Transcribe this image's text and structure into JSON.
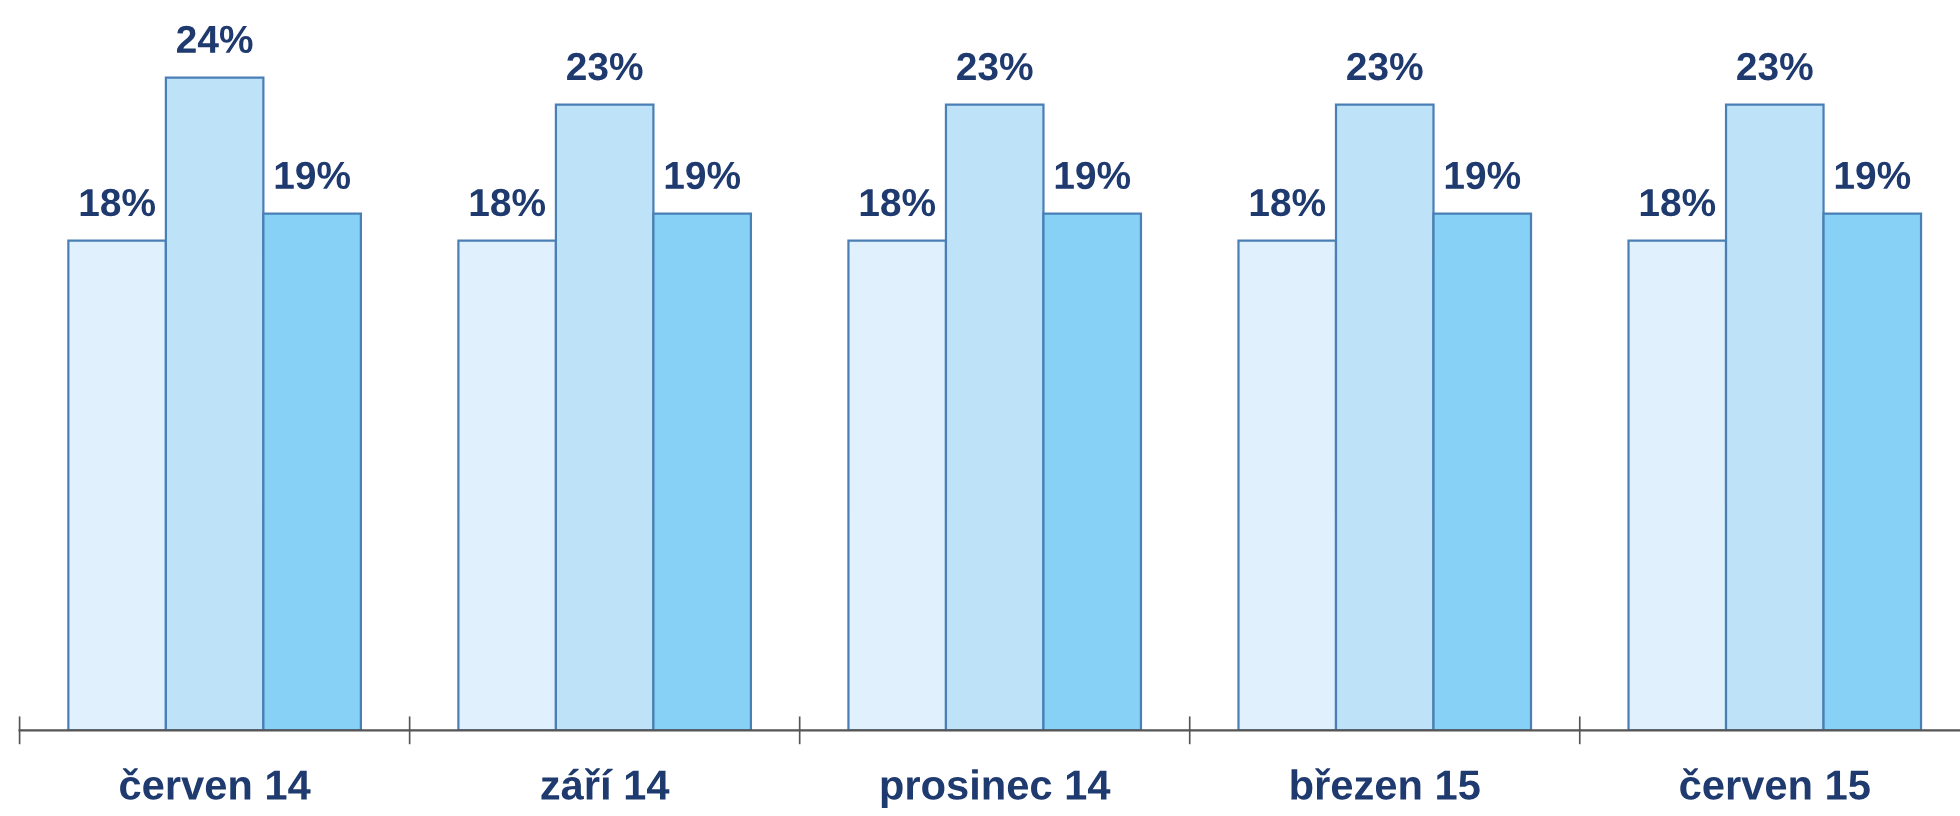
{
  "chart_data": {
    "type": "bar",
    "categories": [
      "červen 14",
      "září 14",
      "prosinec 14",
      "březen 15",
      "červen 15"
    ],
    "series": [
      {
        "color": "#e0f0fc",
        "values": [
          18,
          18,
          18,
          18,
          18
        ],
        "value_labels": [
          "18%",
          "18%",
          "18%",
          "18%",
          "18%"
        ]
      },
      {
        "color": "#bee3f8",
        "values": [
          24,
          23,
          23,
          23,
          23
        ],
        "value_labels": [
          "24%",
          "23%",
          "23%",
          "23%",
          "23%"
        ]
      },
      {
        "color": "#86d1f5",
        "values": [
          19,
          19,
          19,
          19,
          19
        ],
        "value_labels": [
          "19%",
          "19%",
          "19%",
          "19%",
          "19%"
        ]
      }
    ],
    "grid": false,
    "tick_labels": "x"
  }
}
